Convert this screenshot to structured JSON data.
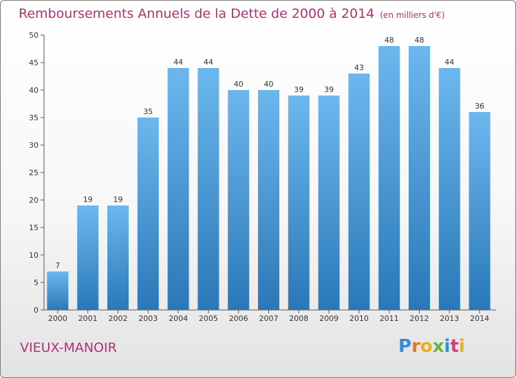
{
  "title": "Remboursements Annuels de la Dette de 2000 à 2014",
  "unit": "(en milliers d'€)",
  "commune": "VIEUX-MANOIR",
  "logo": {
    "text": "Proxiti",
    "letter_colors": [
      "#2f8fd8",
      "#e8732a",
      "#e8b020",
      "#6db33f",
      "#2f8fd8",
      "#e03a6e",
      "#e8b020"
    ]
  },
  "colors": {
    "bar_top": "#6cb7ee",
    "bar_bottom": "#2a78b8",
    "title": "#b03070"
  },
  "chart_data": {
    "type": "bar",
    "title": "Remboursements Annuels de la Dette de 2000 à 2014",
    "xlabel": "",
    "ylabel": "",
    "ylim": [
      0,
      50
    ],
    "yticks": [
      0,
      5,
      10,
      15,
      20,
      25,
      30,
      35,
      40,
      45,
      50
    ],
    "grid": false,
    "categories": [
      "2000",
      "2001",
      "2002",
      "2003",
      "2004",
      "2005",
      "2006",
      "2007",
      "2008",
      "2009",
      "2010",
      "2011",
      "2012",
      "2013",
      "2014"
    ],
    "values": [
      7,
      19,
      19,
      35,
      44,
      44,
      40,
      40,
      39,
      39,
      43,
      48,
      48,
      44,
      36
    ]
  }
}
